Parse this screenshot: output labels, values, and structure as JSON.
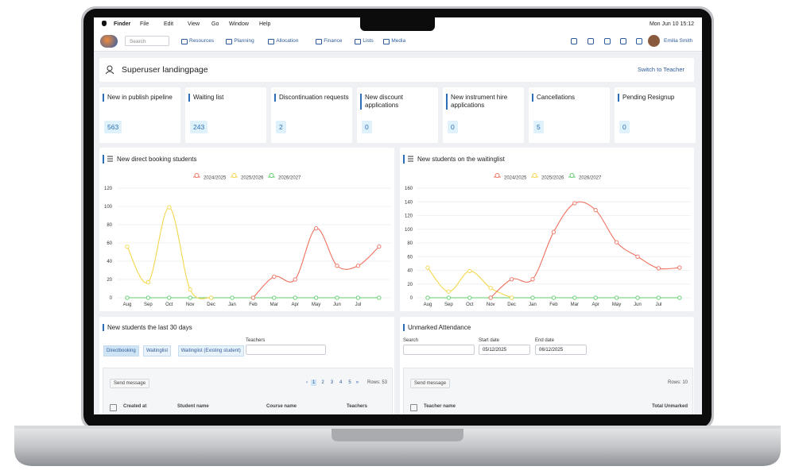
{
  "menubar": {
    "app": "Finder",
    "menus": [
      "File",
      "Edit",
      "View",
      "Go",
      "Window",
      "Help"
    ],
    "clock": "Mon Jun 10 15:12"
  },
  "nav": {
    "search_placeholder": "Search",
    "items": [
      "Resources",
      "Planning",
      "Allocation",
      "Finance",
      "Lists",
      "Media"
    ],
    "user": "Emilia Smith"
  },
  "header": {
    "title": "Superuser landingpage",
    "action": "Switch to Teacher"
  },
  "stats": [
    {
      "label": "New in publish pipeline",
      "value": 563
    },
    {
      "label": "Waiting list",
      "value": 243
    },
    {
      "label": "Discontinuation requests",
      "value": 2
    },
    {
      "label": "New discount applications",
      "value": 0
    },
    {
      "label": "New instrument hire applications",
      "value": 0
    },
    {
      "label": "Cancellations",
      "value": 5
    },
    {
      "label": "Pending Resignup",
      "value": 0
    }
  ],
  "chart_data": [
    {
      "type": "line",
      "title": "New direct booking students",
      "grid": true,
      "categories": [
        "Aug",
        "Sep",
        "Oct",
        "Nov",
        "Dec",
        "Jan",
        "Feb",
        "Mar",
        "Apr",
        "May",
        "Jun",
        "Jul",
        null
      ],
      "ylim": [
        0,
        120
      ],
      "yticks": [
        0,
        20,
        40,
        60,
        80,
        100,
        120
      ],
      "series": [
        {
          "name": "2024/2025",
          "color": "#f0705f",
          "values": [
            null,
            null,
            null,
            null,
            null,
            null,
            0,
            23,
            20,
            76,
            35,
            35,
            56
          ]
        },
        {
          "name": "2025/2026",
          "color": "#f3d64a",
          "values": [
            56,
            17,
            99,
            9,
            0,
            null,
            null,
            null,
            null,
            null,
            null,
            null,
            null
          ]
        },
        {
          "name": "2026/2027",
          "color": "#5ccc6a",
          "values": [
            0,
            0,
            0,
            0,
            0,
            0,
            0,
            0,
            0,
            0,
            0,
            0,
            0
          ]
        }
      ]
    },
    {
      "type": "line",
      "title": "New students on the waitinglist",
      "grid": true,
      "categories": [
        "Aug",
        "Sep",
        "Oct",
        "Nov",
        "Dec",
        "Jan",
        "Feb",
        "Mar",
        "Apr",
        "May",
        "Jun",
        "Jul",
        null
      ],
      "ylim": [
        0,
        160
      ],
      "yticks": [
        0,
        20,
        40,
        60,
        80,
        100,
        120,
        140,
        160
      ],
      "series": [
        {
          "name": "2024/2025",
          "color": "#f0705f",
          "values": [
            null,
            null,
            null,
            0,
            27,
            27,
            96,
            138,
            128,
            81,
            60,
            43,
            44
          ]
        },
        {
          "name": "2025/2026",
          "color": "#f3d64a",
          "values": [
            44,
            9,
            39,
            14,
            0,
            null,
            null,
            null,
            null,
            null,
            null,
            null,
            null
          ]
        },
        {
          "name": "2026/2027",
          "color": "#5ccc6a",
          "values": [
            0,
            0,
            0,
            0,
            0,
            0,
            0,
            0,
            0,
            0,
            0,
            0,
            0
          ]
        }
      ]
    }
  ],
  "panels": [
    {
      "title": "New students the last 30 days",
      "tabs": [
        "Directbooking",
        "Waitinglist",
        "Waitinglist (Existing student)"
      ],
      "filter_label": "Teachers",
      "button": "Send message",
      "prev": "‹",
      "pages": [
        1,
        2,
        3,
        4,
        5
      ],
      "next": "»",
      "rows": "Rows: 53",
      "columns": [
        "Created at",
        "Student name",
        "Course name",
        "Teachers"
      ]
    },
    {
      "title": "Unmarked Attendance",
      "search_label": "Search",
      "start_label": "Start date",
      "start_value": "05/12/2025",
      "end_label": "End date",
      "end_value": "06/12/2025",
      "button": "Send message",
      "rows": "Rows: 10",
      "columns": [
        "Teacher name",
        "Total Unmarked"
      ]
    }
  ]
}
